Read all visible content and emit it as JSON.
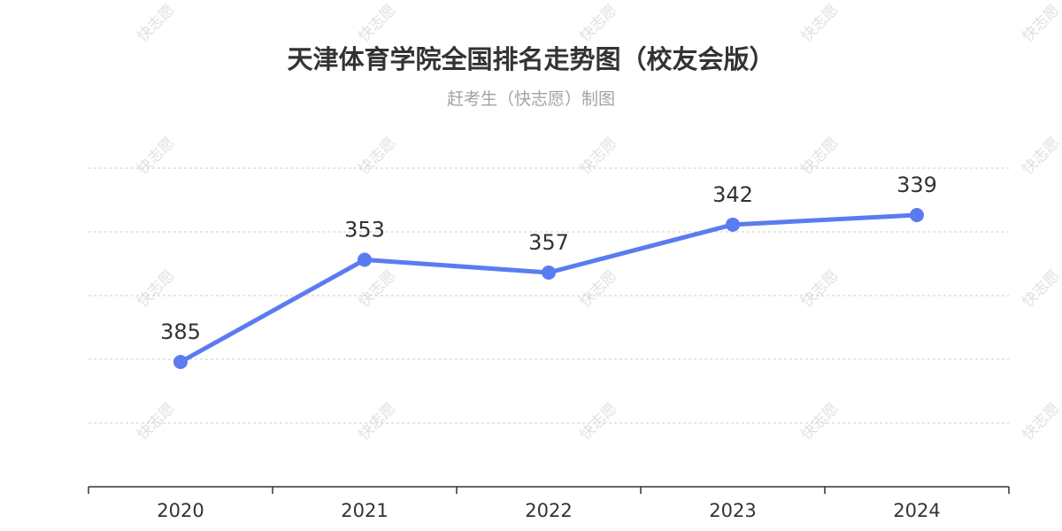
{
  "title": "天津体育学院全国排名走势图（校友会版）",
  "subtitle": "赶考生（快志愿）制图",
  "watermark": "快志愿",
  "colors": {
    "line": "#5B7BF0",
    "grid": "#cccccc",
    "axis": "#333333",
    "title": "#333333",
    "subtitle": "#a3a3a3"
  },
  "chart_data": {
    "type": "line",
    "categories": [
      "2020",
      "2021",
      "2022",
      "2023",
      "2024"
    ],
    "series": [
      {
        "values": [
          385,
          353,
          357,
          342,
          339
        ]
      }
    ],
    "y_inverted": true,
    "y_axis_labels_shown": false,
    "grid": true,
    "xlabel": "",
    "ylabel": ""
  }
}
